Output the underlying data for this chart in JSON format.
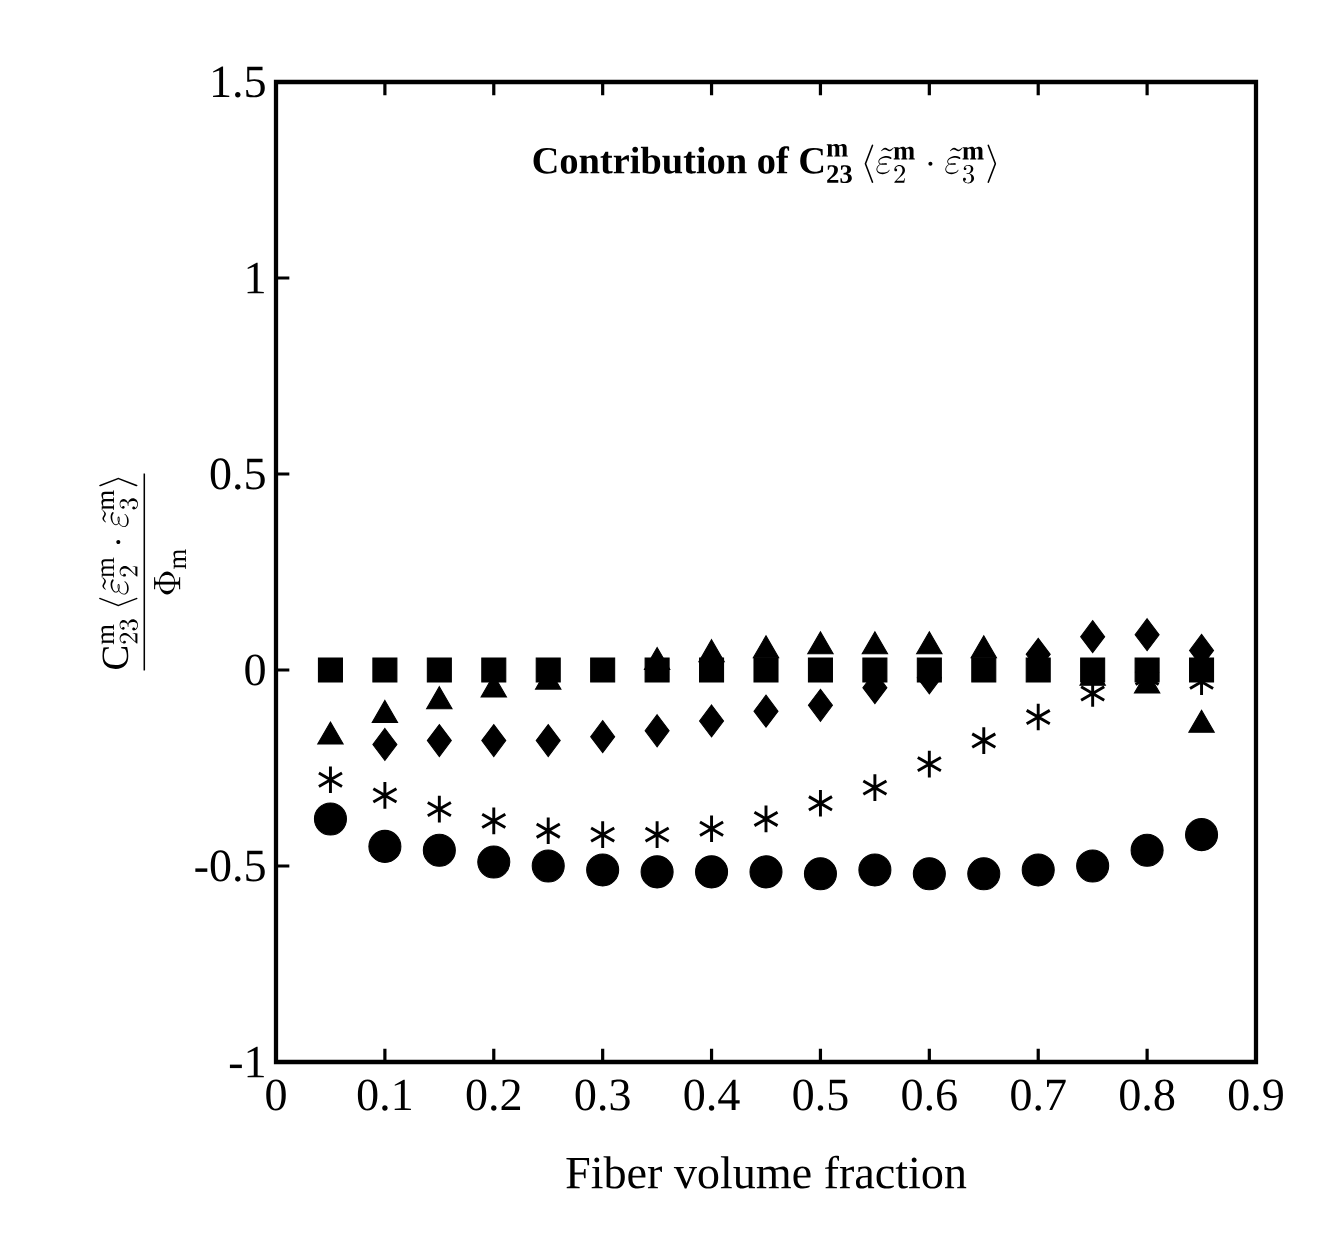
{
  "chart_data": {
    "type": "scatter",
    "title": "\\mathbf{Contribution\\ of\\ C}_{\\mathbf{23}}^{\\mathbf{m}}\\left\\langle\\tilde{\\varepsilon}_{2}^{\\mathbf{m}}\\cdot\\tilde{\\varepsilon}_{3}^{\\mathbf{m}}\\right\\rangle",
    "xlabel": "Fiber volume fraction",
    "ylabel": "\\frac{\\mathrm{C}_{23}^{\\mathrm{m}}\\left\\langle\\tilde{\\varepsilon}_{2}^{\\mathrm{m}}\\cdot\\tilde{\\varepsilon}_{3}^{\\mathrm{m}}\\right\\rangle}{\\Phi_{\\mathrm{m}}}",
    "x": [
      0.05,
      0.1,
      0.15,
      0.2,
      0.25,
      0.3,
      0.35,
      0.4,
      0.45,
      0.5,
      0.55,
      0.6,
      0.65,
      0.7,
      0.75,
      0.8,
      0.85
    ],
    "series": [
      {
        "color": "#000000",
        "marker": "square",
        "values": [
          0,
          0,
          0,
          0,
          0,
          0,
          0,
          0,
          0,
          0,
          0,
          0,
          0,
          0,
          0,
          0,
          0
        ]
      },
      {
        "color": "#000000",
        "marker": "triangle",
        "values": [
          -0.17,
          -0.115,
          -0.08,
          -0.05,
          -0.03,
          null,
          0.02,
          0.04,
          0.05,
          0.06,
          0.06,
          0.06,
          0.05,
          null,
          -0.02,
          -0.04,
          -0.14
        ]
      },
      {
        "color": "#000000",
        "marker": "diamond",
        "values": [
          null,
          -0.19,
          -0.18,
          -0.18,
          -0.18,
          -0.17,
          -0.155,
          -0.13,
          -0.105,
          -0.09,
          -0.045,
          -0.02,
          null,
          0.04,
          0.085,
          0.09,
          0.05
        ]
      },
      {
        "color": "#000000",
        "marker": "cross",
        "values": [
          -0.28,
          -0.32,
          -0.355,
          -0.385,
          -0.41,
          -0.42,
          -0.42,
          -0.405,
          -0.38,
          -0.34,
          -0.3,
          -0.24,
          -0.18,
          -0.12,
          -0.06,
          -0.02,
          -0.03
        ]
      },
      {
        "color": "#000000",
        "marker": "circle",
        "values": [
          -0.38,
          -0.45,
          -0.46,
          -0.49,
          -0.5,
          -0.51,
          -0.515,
          -0.515,
          -0.515,
          -0.52,
          -0.51,
          -0.52,
          -0.52,
          -0.51,
          -0.5,
          -0.46,
          -0.42
        ]
      }
    ],
    "xlim": [
      0,
      0.9
    ],
    "xticks": [
      0,
      0.1,
      0.2,
      0.3,
      0.4,
      0.5,
      0.6,
      0.7,
      0.8,
      0.9
    ],
    "ylim": [
      -1,
      1.5
    ],
    "yticks": [
      -1,
      -0.5,
      0,
      0.5,
      1,
      1.5
    ],
    "grid": false
  }
}
